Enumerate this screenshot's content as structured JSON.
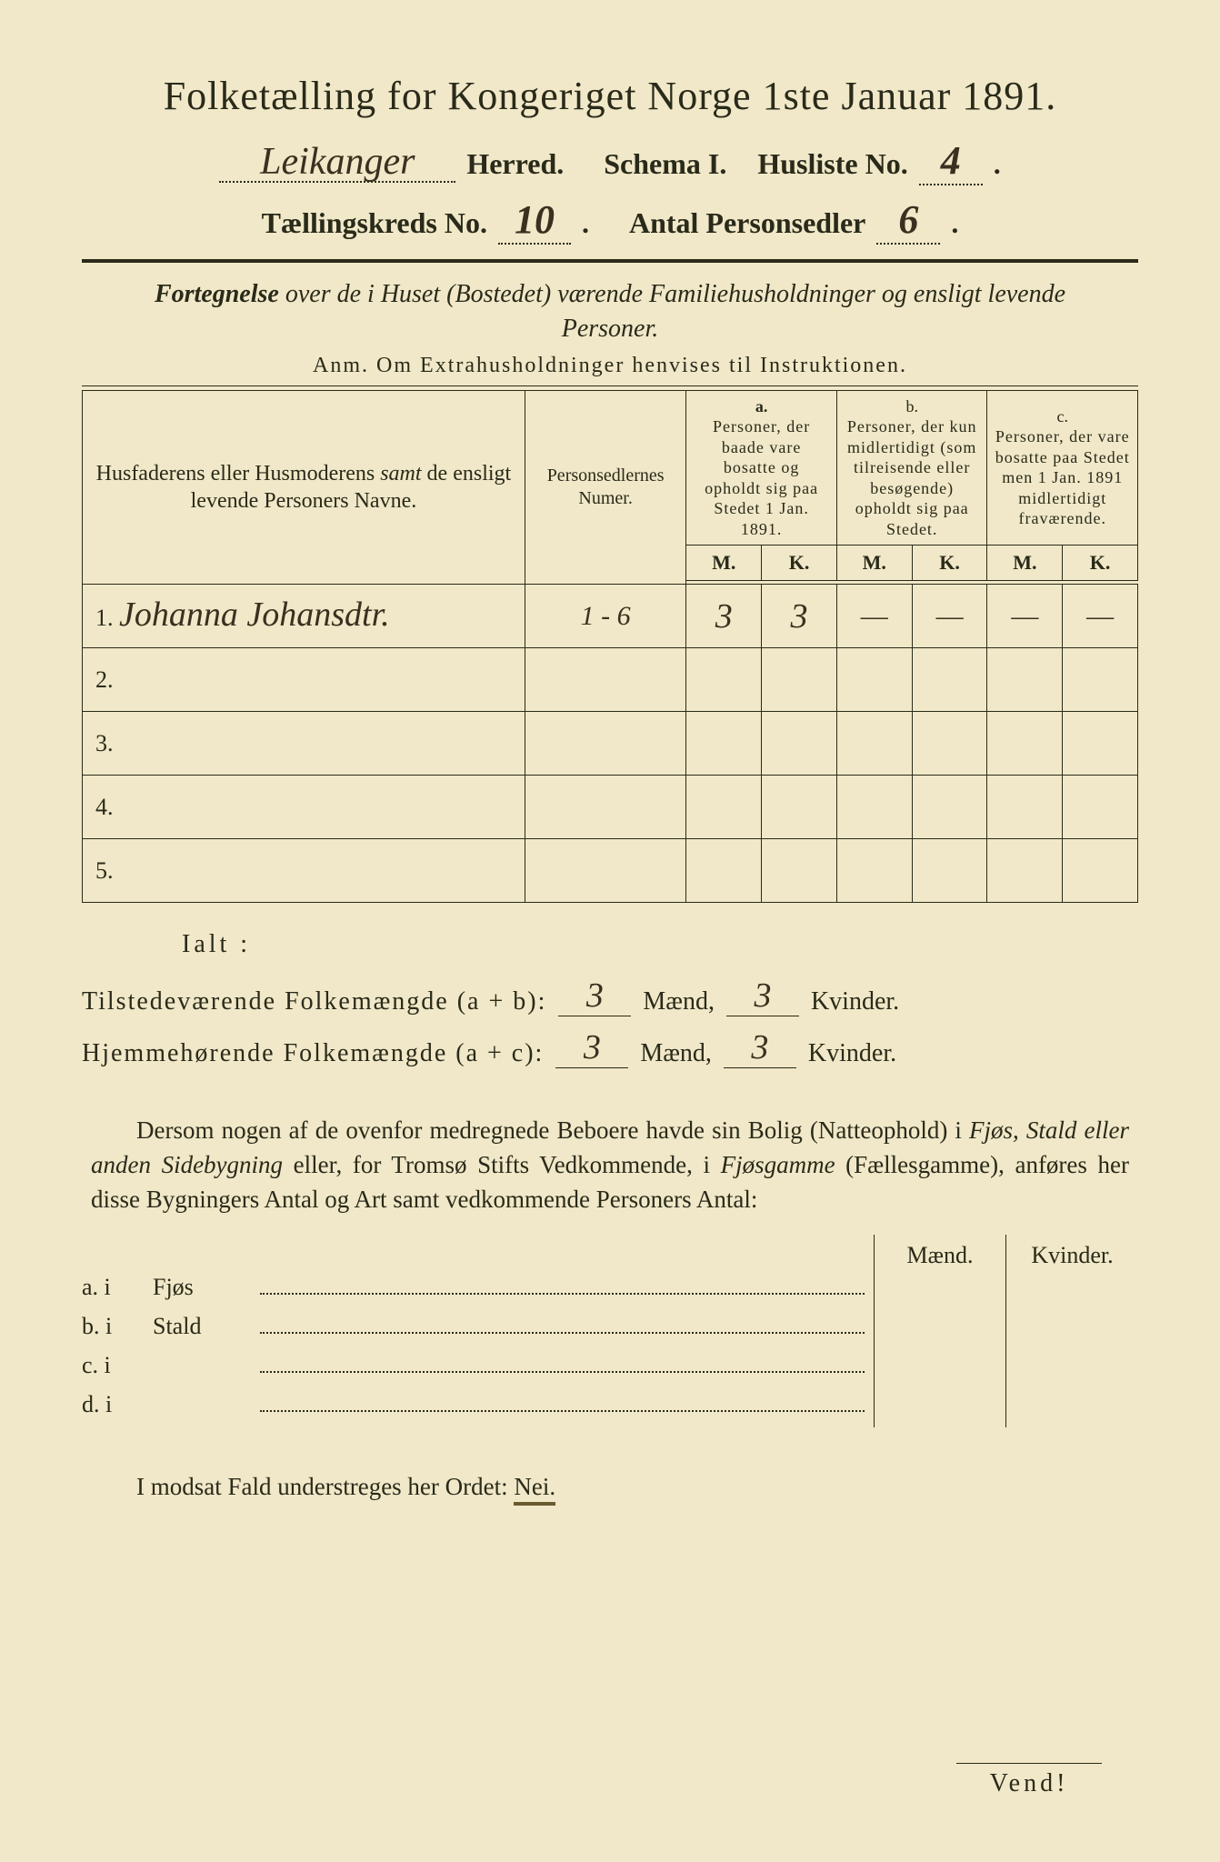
{
  "title": "Folketælling for Kongeriget Norge 1ste Januar 1891.",
  "header": {
    "herred_label": "Herred.",
    "herred_value": "Leikanger",
    "schema_label": "Schema I.",
    "husliste_label": "Husliste No.",
    "husliste_value": "4",
    "kreds_label": "Tællingskreds No.",
    "kreds_value": "10",
    "antal_label": "Antal Personsedler",
    "antal_value": "6"
  },
  "intro_bold": "Fortegnelse",
  "intro_rest_1": " over de i ",
  "intro_ital": "Huset (Bostedet)",
  "intro_rest_2": " værende Familiehusholdninger og ensligt levende Personer.",
  "anm": "Anm.   Om Extrahusholdninger henvises til Instruktionen.",
  "columns": {
    "name": "Husfaderens eller Husmoderens samt de ensligt levende Personers Navne.",
    "num": "Personsedlernes Numer.",
    "a_tag": "a.",
    "a": "Personer, der baade vare bosatte og opholdt sig paa Stedet 1 Jan. 1891.",
    "b_tag": "b.",
    "b": "Personer, der kun midlertidigt (som tilreisende eller besøgende) opholdt sig paa Stedet.",
    "c_tag": "c.",
    "c": "Personer, der vare bosatte paa Stedet men 1 Jan. 1891 midlertidigt fraværende.",
    "m": "M.",
    "k": "K."
  },
  "rows": [
    {
      "n": "1.",
      "name": "Johanna Johansdtr.",
      "num": "1 - 6",
      "am": "3",
      "ak": "3",
      "bm": "—",
      "bk": "—",
      "cm": "—",
      "ck": "—"
    },
    {
      "n": "2.",
      "name": "",
      "num": "",
      "am": "",
      "ak": "",
      "bm": "",
      "bk": "",
      "cm": "",
      "ck": ""
    },
    {
      "n": "3.",
      "name": "",
      "num": "",
      "am": "",
      "ak": "",
      "bm": "",
      "bk": "",
      "cm": "",
      "ck": ""
    },
    {
      "n": "4.",
      "name": "",
      "num": "",
      "am": "",
      "ak": "",
      "bm": "",
      "bk": "",
      "cm": "",
      "ck": ""
    },
    {
      "n": "5.",
      "name": "",
      "num": "",
      "am": "",
      "ak": "",
      "bm": "",
      "bk": "",
      "cm": "",
      "ck": ""
    }
  ],
  "totals": {
    "ialt": "Ialt :",
    "line1_label": "Tilstedeværende Folkemængde (a + b):",
    "line2_label": "Hjemmehørende Folkemængde (a + c):",
    "maend": "Mænd,",
    "kvinder": "Kvinder.",
    "l1_m": "3",
    "l1_k": "3",
    "l2_m": "3",
    "l2_k": "3"
  },
  "para": "Dersom nogen af de ovenfor medregnede Beboere havde sin Bolig (Natteophold) i Fjøs, Stald eller anden Sidebygning eller, for Tromsø Stifts Vedkommende, i Fjøsgamme (Fællesgamme), anføres her disse Bygningers Antal og Art samt vedkommende Personers Antal:",
  "bygning": {
    "maend": "Mænd.",
    "kvinder": "Kvinder.",
    "rows": [
      {
        "label": "a.  i",
        "name": "Fjøs"
      },
      {
        "label": "b.  i",
        "name": "Stald"
      },
      {
        "label": "c.  i",
        "name": ""
      },
      {
        "label": "d.  i",
        "name": ""
      }
    ]
  },
  "nei_line_pre": "I modsat Fald understreges her Ordet: ",
  "nei": "Nei.",
  "vend": "Vend!",
  "colors": {
    "paper": "#f0e8c8",
    "ink": "#2a2a1a",
    "handwriting": "#3a3020"
  }
}
